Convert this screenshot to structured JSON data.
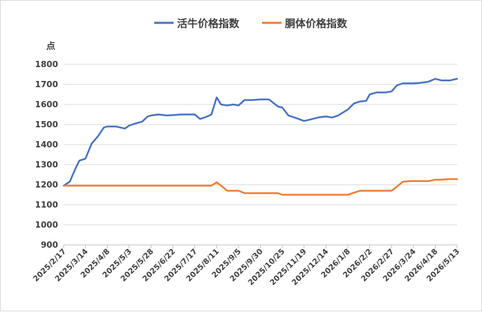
{
  "chart_data": {
    "type": "line",
    "ylabel": "点",
    "ylim": [
      900,
      1800
    ],
    "y_ticks": [
      900,
      1000,
      1100,
      1200,
      1300,
      1400,
      1500,
      1600,
      1700,
      1800
    ],
    "grid": "horizontal",
    "legend_position": "top-center",
    "x_tick_labels": [
      "2025/2/17",
      "2025/3/14",
      "2025/4/8",
      "2025/5/3",
      "2025/5/28",
      "2025/6/22",
      "2025/7/17",
      "2025/8/11",
      "2025/9/5",
      "2025/9/30",
      "2025/10/25",
      "2025/11/19",
      "2025/12/14",
      "2026/1/8",
      "2026/2/2",
      "2026/2/27",
      "2026/3/24",
      "2026/4/18",
      "2026/5/13"
    ],
    "x": [
      "2025/2/17",
      "2025/2/24",
      "2025/3/3",
      "2025/3/7",
      "2025/3/14",
      "2025/3/21",
      "2025/3/28",
      "2025/4/4",
      "2025/4/8",
      "2025/4/18",
      "2025/4/28",
      "2025/5/3",
      "2025/5/10",
      "2025/5/18",
      "2025/5/24",
      "2025/5/28",
      "2025/6/5",
      "2025/6/15",
      "2025/6/22",
      "2025/7/1",
      "2025/7/10",
      "2025/7/17",
      "2025/7/23",
      "2025/7/30",
      "2025/8/5",
      "2025/8/11",
      "2025/8/16",
      "2025/8/23",
      "2025/8/30",
      "2025/9/5",
      "2025/9/12",
      "2025/9/20",
      "2025/9/30",
      "2025/10/10",
      "2025/10/20",
      "2025/10/25",
      "2025/11/1",
      "2025/11/8",
      "2025/11/19",
      "2025/11/26",
      "2025/12/5",
      "2025/12/14",
      "2025/12/21",
      "2025/12/28",
      "2026/1/8",
      "2026/1/15",
      "2026/1/22",
      "2026/1/29",
      "2026/2/2",
      "2026/2/10",
      "2026/2/20",
      "2026/2/27",
      "2026/3/5",
      "2026/3/12",
      "2026/3/20",
      "2026/3/24",
      "2026/4/1",
      "2026/4/10",
      "2026/4/18",
      "2026/4/25",
      "2026/5/5",
      "2026/5/13"
    ],
    "series": [
      {
        "name": "活牛价格指数",
        "color": "#4472c4",
        "values": [
          1195,
          1215,
          1285,
          1320,
          1330,
          1405,
          1440,
          1485,
          1490,
          1490,
          1480,
          1495,
          1505,
          1515,
          1540,
          1545,
          1550,
          1545,
          1547,
          1550,
          1550,
          1550,
          1528,
          1538,
          1550,
          1635,
          1600,
          1595,
          1600,
          1595,
          1622,
          1622,
          1625,
          1625,
          1590,
          1585,
          1545,
          1535,
          1518,
          1525,
          1535,
          1540,
          1535,
          1545,
          1575,
          1605,
          1615,
          1618,
          1650,
          1660,
          1660,
          1665,
          1695,
          1705,
          1705,
          1705,
          1708,
          1713,
          1728,
          1720,
          1720,
          1728
        ]
      },
      {
        "name": "胴体价格指数",
        "color": "#ed7d31",
        "values": [
          1195,
          1195,
          1195,
          1195,
          1195,
          1195,
          1195,
          1195,
          1195,
          1195,
          1195,
          1195,
          1195,
          1195,
          1195,
          1195,
          1195,
          1195,
          1195,
          1195,
          1195,
          1195,
          1195,
          1195,
          1195,
          1212,
          1195,
          1170,
          1170,
          1170,
          1158,
          1158,
          1158,
          1158,
          1158,
          1150,
          1150,
          1150,
          1150,
          1150,
          1150,
          1150,
          1150,
          1150,
          1150,
          1160,
          1170,
          1170,
          1170,
          1170,
          1170,
          1170,
          1190,
          1215,
          1218,
          1218,
          1218,
          1218,
          1225,
          1225,
          1228,
          1228
        ]
      }
    ]
  }
}
